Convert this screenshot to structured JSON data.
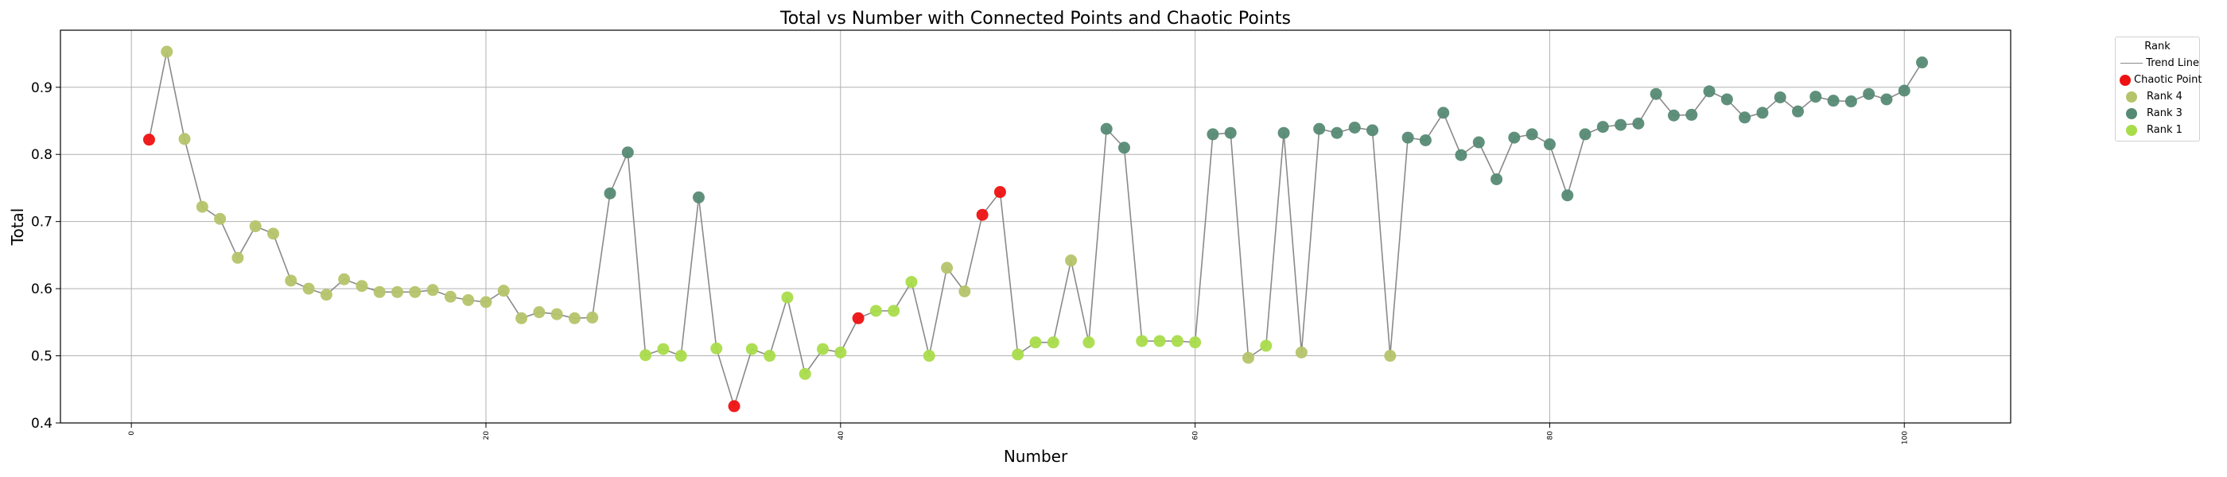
{
  "colors": {
    "chaotic": "#ee1111",
    "rank4": "#b5c46a",
    "rank3": "#568a74",
    "rank1": "#a9dc4a",
    "trend_line": "#8a8a8a",
    "grid": "#b0b0b0"
  },
  "chart_data": {
    "type": "scatter",
    "title": "Total vs Number with Connected Points and Chaotic Points",
    "xlabel": "Number",
    "ylabel": "Total",
    "xlim": [
      -4,
      106
    ],
    "ylim": [
      0.4,
      0.985
    ],
    "xticks": [
      0,
      20,
      40,
      60,
      80,
      100
    ],
    "yticks": [
      0.4,
      0.5,
      0.6,
      0.7,
      0.8,
      0.9
    ],
    "xtick_labels": [
      "0",
      "20",
      "40",
      "60",
      "80",
      "100"
    ],
    "ytick_labels": [
      "0.4",
      "0.5",
      "0.6",
      "0.7",
      "0.8",
      "0.9"
    ],
    "grid": true,
    "legend": {
      "title": "Rank",
      "placement": "outside-top-right",
      "entries": [
        {
          "label": "Trend Line",
          "key": "trend_line",
          "marker": "line"
        },
        {
          "label": "Chaotic Point",
          "key": "chaotic",
          "marker": "dot"
        },
        {
          "label": "Rank 4",
          "key": "rank4",
          "marker": "dot"
        },
        {
          "label": "Rank 3",
          "key": "rank3",
          "marker": "dot"
        },
        {
          "label": "Rank 1",
          "key": "rank1",
          "marker": "dot"
        }
      ]
    },
    "series": [
      {
        "name": "Trend Line",
        "x": [
          1,
          2,
          3,
          4,
          5,
          6,
          7,
          8,
          9,
          10,
          11,
          12,
          13,
          14,
          15,
          16,
          17,
          18,
          19,
          20,
          21,
          22,
          23,
          24,
          25,
          26,
          27,
          28,
          29,
          30,
          31,
          32,
          33,
          34,
          35,
          36,
          37,
          38,
          39,
          40,
          41,
          42,
          43,
          44,
          45,
          46,
          47,
          48,
          49,
          50,
          51,
          52,
          53,
          54,
          55,
          56,
          57,
          58,
          59,
          60,
          61,
          62,
          63,
          64,
          65,
          66,
          67,
          68,
          69,
          70,
          71,
          72,
          73,
          74,
          75,
          76,
          77,
          78,
          79,
          80,
          81,
          82,
          83,
          84,
          85,
          86,
          87,
          88,
          89,
          90,
          91,
          92,
          93,
          94,
          95,
          96,
          97,
          98,
          99,
          100,
          101
        ],
        "y": [
          0.822,
          0.953,
          0.823,
          0.722,
          0.704,
          0.646,
          0.693,
          0.682,
          0.612,
          0.6,
          0.591,
          0.614,
          0.604,
          0.595,
          0.595,
          0.595,
          0.598,
          0.588,
          0.583,
          0.58,
          0.597,
          0.556,
          0.565,
          0.562,
          0.556,
          0.557,
          0.742,
          0.803,
          0.501,
          0.51,
          0.5,
          0.736,
          0.511,
          0.425,
          0.51,
          0.5,
          0.587,
          0.473,
          0.51,
          0.505,
          0.556,
          0.567,
          0.567,
          0.61,
          0.5,
          0.631,
          0.596,
          0.71,
          0.744,
          0.502,
          0.52,
          0.52,
          0.642,
          0.52,
          0.838,
          0.81,
          0.522,
          0.522,
          0.522,
          0.52,
          0.83,
          0.832,
          0.497,
          0.515,
          0.832,
          0.505,
          0.838,
          0.832,
          0.84,
          0.836,
          0.5,
          0.825,
          0.821,
          0.862,
          0.799,
          0.818,
          0.763,
          0.825,
          0.83,
          0.815,
          0.739,
          0.83,
          0.841,
          0.844,
          0.846,
          0.89,
          0.858,
          0.859,
          0.894,
          0.882,
          0.855,
          0.862,
          0.885,
          0.864,
          0.886,
          0.88,
          0.879,
          0.89,
          0.882,
          0.895,
          0.937
        ]
      },
      {
        "name": "Chaotic Point",
        "x": [
          1,
          34,
          41,
          48,
          49
        ],
        "y": [
          0.822,
          0.425,
          0.556,
          0.71,
          0.744
        ]
      },
      {
        "name": "Rank 4",
        "x": [
          2,
          3,
          4,
          5,
          6,
          7,
          8,
          9,
          10,
          11,
          12,
          13,
          14,
          15,
          16,
          17,
          18,
          19,
          20,
          21,
          22,
          23,
          24,
          25,
          26,
          46,
          47,
          53,
          63,
          66,
          71
        ],
        "y": [
          0.953,
          0.823,
          0.722,
          0.704,
          0.646,
          0.693,
          0.682,
          0.612,
          0.6,
          0.591,
          0.614,
          0.604,
          0.595,
          0.595,
          0.595,
          0.598,
          0.588,
          0.583,
          0.58,
          0.597,
          0.556,
          0.565,
          0.562,
          0.556,
          0.557,
          0.631,
          0.596,
          0.642,
          0.497,
          0.505,
          0.5
        ]
      },
      {
        "name": "Rank 3",
        "x": [
          27,
          28,
          32,
          55,
          56,
          61,
          62,
          65,
          67,
          68,
          69,
          70,
          72,
          73,
          74,
          75,
          76,
          77,
          78,
          79,
          80,
          81,
          82,
          83,
          84,
          85,
          86,
          87,
          88,
          89,
          90,
          91,
          92,
          93,
          94,
          95,
          96,
          97,
          98,
          99,
          100,
          101
        ],
        "y": [
          0.742,
          0.803,
          0.736,
          0.838,
          0.81,
          0.83,
          0.832,
          0.832,
          0.838,
          0.832,
          0.84,
          0.836,
          0.825,
          0.821,
          0.862,
          0.799,
          0.818,
          0.763,
          0.825,
          0.83,
          0.815,
          0.739,
          0.83,
          0.841,
          0.844,
          0.846,
          0.89,
          0.858,
          0.859,
          0.894,
          0.882,
          0.855,
          0.862,
          0.885,
          0.864,
          0.886,
          0.88,
          0.879,
          0.89,
          0.882,
          0.895,
          0.937
        ]
      },
      {
        "name": "Rank 1",
        "x": [
          29,
          30,
          31,
          33,
          35,
          36,
          37,
          38,
          39,
          40,
          42,
          43,
          44,
          45,
          50,
          51,
          52,
          54,
          57,
          58,
          59,
          60,
          64
        ],
        "y": [
          0.501,
          0.51,
          0.5,
          0.511,
          0.51,
          0.5,
          0.587,
          0.473,
          0.51,
          0.505,
          0.567,
          0.567,
          0.61,
          0.5,
          0.502,
          0.52,
          0.52,
          0.52,
          0.522,
          0.522,
          0.522,
          0.52,
          0.515
        ]
      }
    ]
  }
}
